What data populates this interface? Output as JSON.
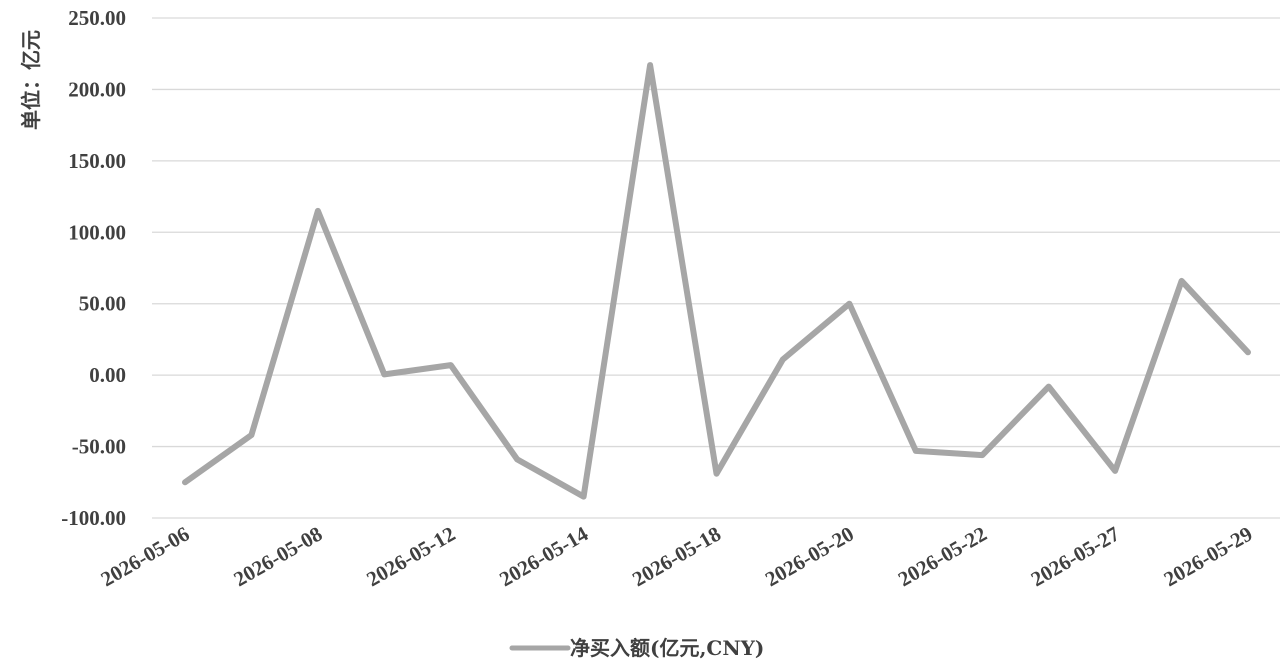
{
  "chart_data": {
    "type": "line",
    "ylabel": "单位：亿元",
    "ylim": [
      -100,
      250
    ],
    "yticks": [
      "250.00",
      "200.00",
      "150.00",
      "100.00",
      "50.00",
      "0.00",
      "-50.00",
      "-100.00"
    ],
    "ytick_values": [
      250,
      200,
      150,
      100,
      50,
      0,
      -50,
      -100
    ],
    "xtick_labels": [
      "2026-05-06",
      "2026-05-08",
      "2026-05-12",
      "2026-05-14",
      "2026-05-18",
      "2026-05-20",
      "2026-05-22",
      "2026-05-27",
      "2026-05-29"
    ],
    "grid": true,
    "legend_position": "bottom",
    "series": [
      {
        "name": "净买入额(亿元,CNY)",
        "color": "#a6a6a6",
        "values": [
          -75,
          -42,
          115,
          0.5,
          7,
          -59,
          -85,
          217,
          -69,
          11,
          50,
          -53,
          -56,
          -8,
          -67,
          66,
          16
        ]
      }
    ]
  }
}
